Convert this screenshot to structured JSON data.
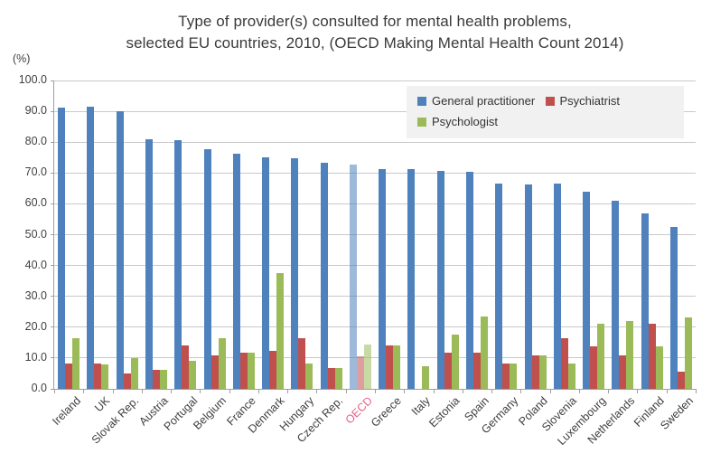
{
  "title": {
    "line1": "Type of provider(s) consulted for mental health problems,",
    "line2": "selected EU countries, 2010, (OECD Making Mental Health Count 2014)"
  },
  "axis_unit_label": "(%)",
  "legend": {
    "items": [
      {
        "label": "General practitioner",
        "color": "#4f81bd"
      },
      {
        "label": "Psychiatrist",
        "color": "#c0504d"
      },
      {
        "label": "Psychologist",
        "color": "#9bbb59"
      }
    ],
    "background": "#f1f1f1",
    "position": "top-right-inside"
  },
  "colors": {
    "general_practitioner": "#4f81bd",
    "psychiatrist": "#c0504d",
    "psychologist": "#9bbb59",
    "gridline": "#c9c9c9",
    "axis": "#9f9f9f",
    "highlight_label": "#e8608a",
    "text": "#3f3f3f"
  },
  "chart_data": {
    "type": "bar",
    "title": "Type of provider(s) consulted for mental health problems, selected EU countries, 2010, (OECD Making Mental Health Count 2014)",
    "ylabel": "(%)",
    "ylim": [
      0,
      100
    ],
    "ytick_step": 10,
    "ytick_format_decimals": 1,
    "grid": true,
    "legend_position": "top-right",
    "highlighted_category": "OECD",
    "categories": [
      "Ireland",
      "UK",
      "Slovak Rep.",
      "Austria",
      "Portugal",
      "Belgium",
      "France",
      "Denmark",
      "Hungary",
      "Czech Rep.",
      "OECD",
      "Greece",
      "Italy",
      "Estonia",
      "Spain",
      "Germany",
      "Poland",
      "Slovenia",
      "Luxembourg",
      "Netherlands",
      "Finland",
      "Sweden"
    ],
    "series": [
      {
        "name": "General practitioner",
        "color": "#4f81bd",
        "values": [
          91.2,
          91.5,
          90.0,
          81.0,
          80.6,
          77.6,
          76.3,
          75.0,
          74.9,
          73.2,
          72.7,
          71.4,
          71.3,
          70.6,
          70.3,
          66.5,
          66.4,
          66.5,
          64.0,
          60.9,
          57.0,
          52.6
        ]
      },
      {
        "name": "Psychiatrist",
        "color": "#c0504d",
        "values": [
          8.1,
          8.2,
          4.9,
          6.2,
          14.0,
          10.9,
          11.7,
          12.4,
          16.5,
          6.7,
          10.7,
          14.0,
          0,
          11.6,
          11.7,
          8.2,
          10.9,
          16.4,
          13.9,
          10.9,
          21.2,
          5.7
        ]
      },
      {
        "name": "Psychologist",
        "color": "#9bbb59",
        "values": [
          16.5,
          8.0,
          9.9,
          6.2,
          9.2,
          16.5,
          11.7,
          37.4,
          8.1,
          6.7,
          14.3,
          14.0,
          7.2,
          17.5,
          23.5,
          8.3,
          11.0,
          8.1,
          21.2,
          22.1,
          13.9,
          23.2
        ]
      }
    ]
  }
}
